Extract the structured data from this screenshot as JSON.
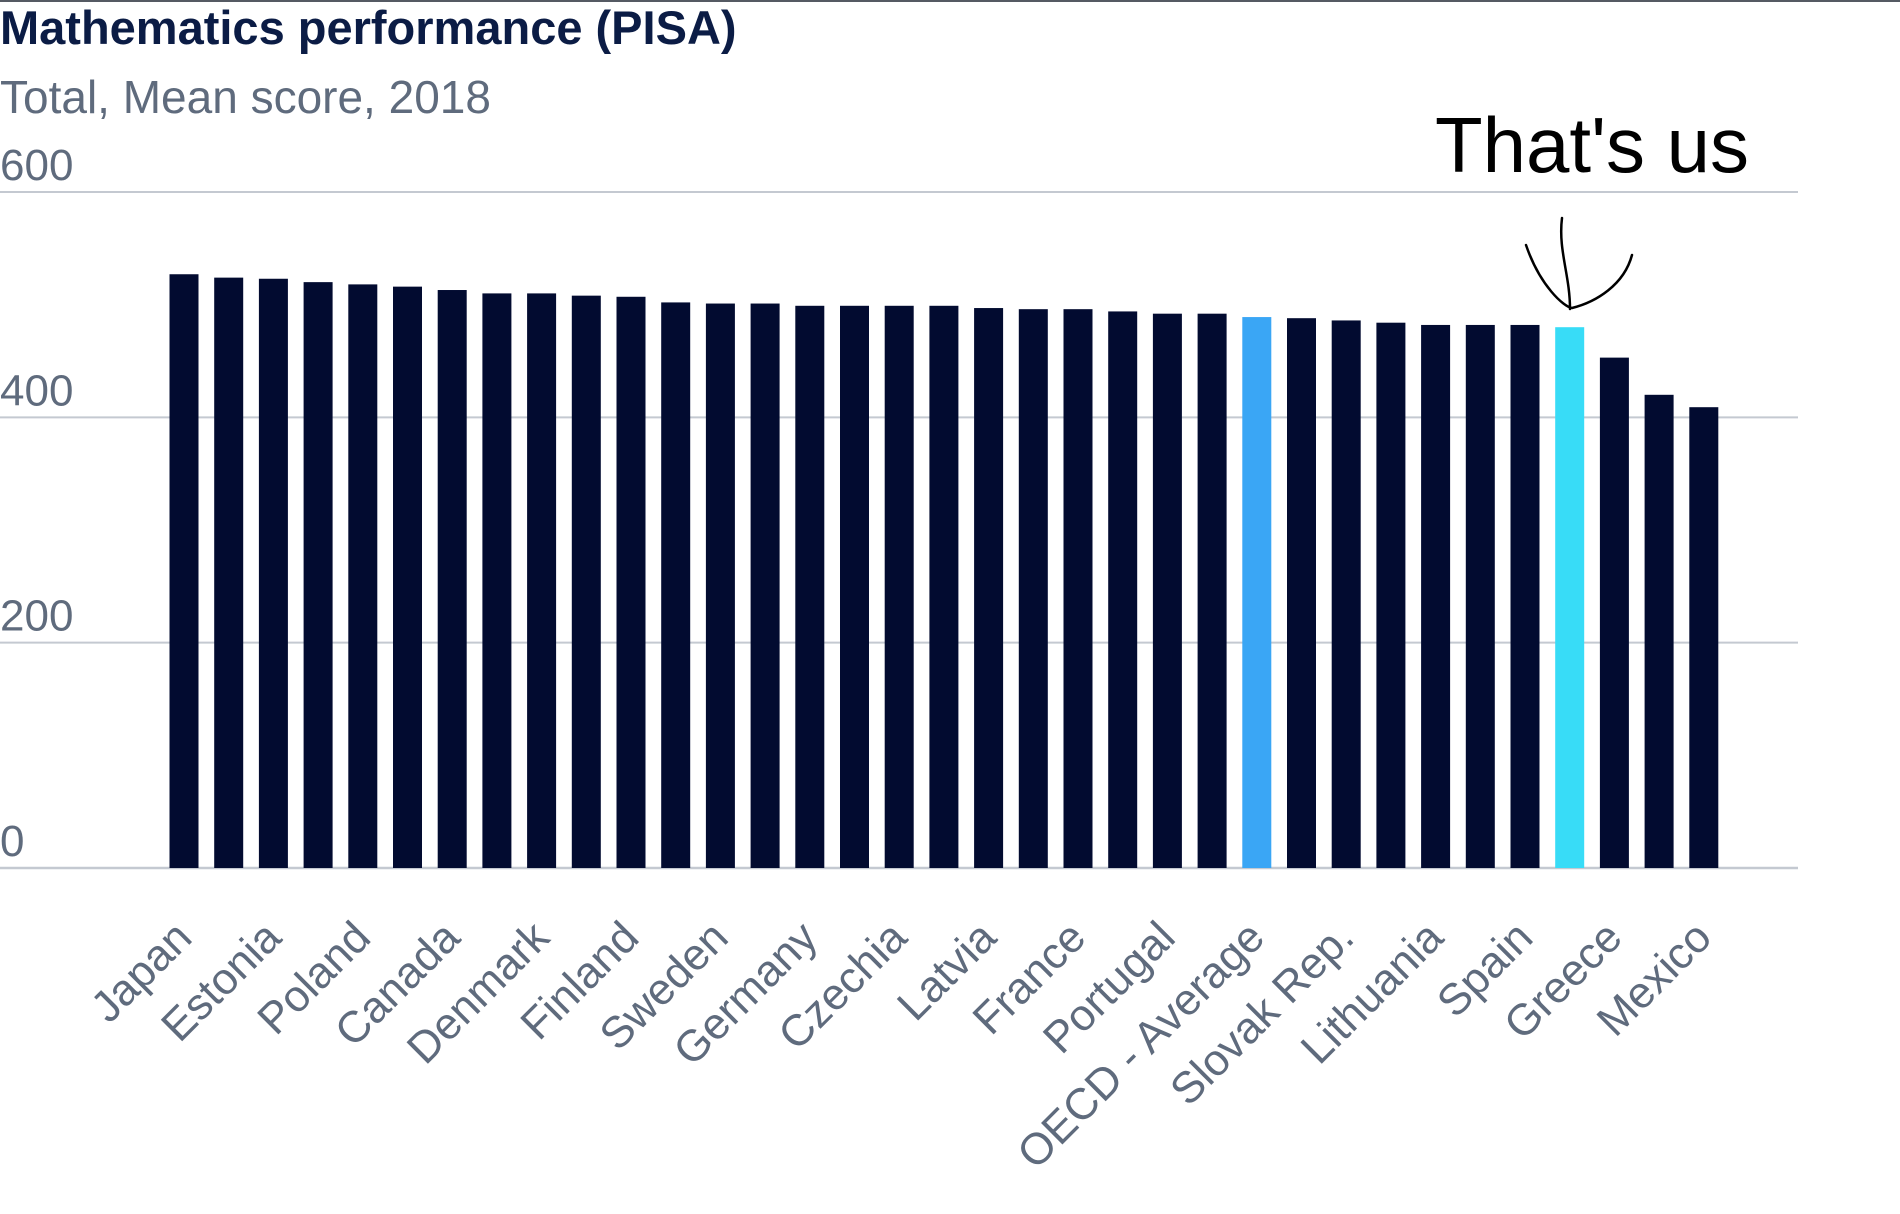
{
  "chart_data": {
    "type": "bar",
    "title": "Mathematics performance (PISA)",
    "subtitle": "Total, Mean score, 2018",
    "xlabel": "",
    "ylabel": "",
    "ylim": [
      0,
      600
    ],
    "yticks": [
      0,
      200,
      400,
      600
    ],
    "grid": true,
    "categories": [
      "Japan",
      "",
      "Estonia",
      "",
      "Poland",
      "",
      "Canada",
      "",
      "Denmark",
      "",
      "Finland",
      "",
      "Sweden",
      "",
      "Germany",
      "",
      "Czechia",
      "",
      "Latvia",
      "",
      "France",
      "",
      "Portugal",
      "",
      "OECD - Average",
      "",
      "Slovak Rep.",
      "",
      "Lithuania",
      "",
      "Spain",
      "",
      "Greece",
      "",
      "Mexico"
    ],
    "values": [
      527,
      524,
      523,
      520,
      518,
      516,
      513,
      510,
      510,
      508,
      507,
      502,
      501,
      501,
      499,
      499,
      499,
      499,
      497,
      496,
      496,
      494,
      492,
      492,
      489,
      488,
      486,
      484,
      482,
      482,
      482,
      480,
      453,
      420,
      409
    ],
    "colors": {
      "default": "#020b30",
      "oecd_average": "#3aa6f5",
      "highlight": "#38dcf7",
      "grid": "#c4c9d1"
    },
    "highlight_index": 31,
    "average_index": 24,
    "annotation": {
      "text": "That's us"
    }
  }
}
